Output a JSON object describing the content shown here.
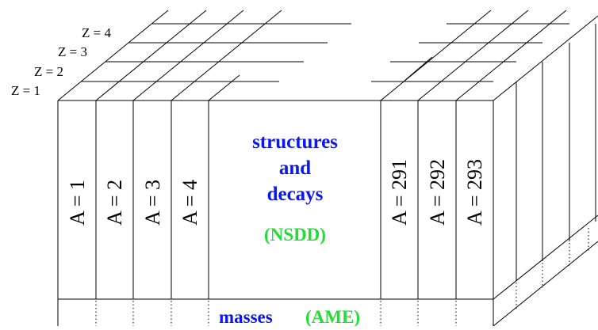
{
  "z_layers": [
    {
      "label": "Z = 1"
    },
    {
      "label": "Z = 2"
    },
    {
      "label": "Z = 3"
    },
    {
      "label": "Z = 4"
    }
  ],
  "left_columns": [
    {
      "label": "A = 1"
    },
    {
      "label": "A = 2"
    },
    {
      "label": "A = 3"
    },
    {
      "label": "A = 4"
    }
  ],
  "right_columns": [
    {
      "label": "A = 291"
    },
    {
      "label": "A = 292"
    },
    {
      "label": "A = 293"
    }
  ],
  "center": {
    "lines": [
      "structures",
      "and",
      "decays"
    ],
    "source": "(NSDD)"
  },
  "bottom": {
    "text": "masses",
    "source": "(AME)"
  },
  "colors": {
    "blue_text": "#0a18ee",
    "green_text": "#22dd33"
  }
}
